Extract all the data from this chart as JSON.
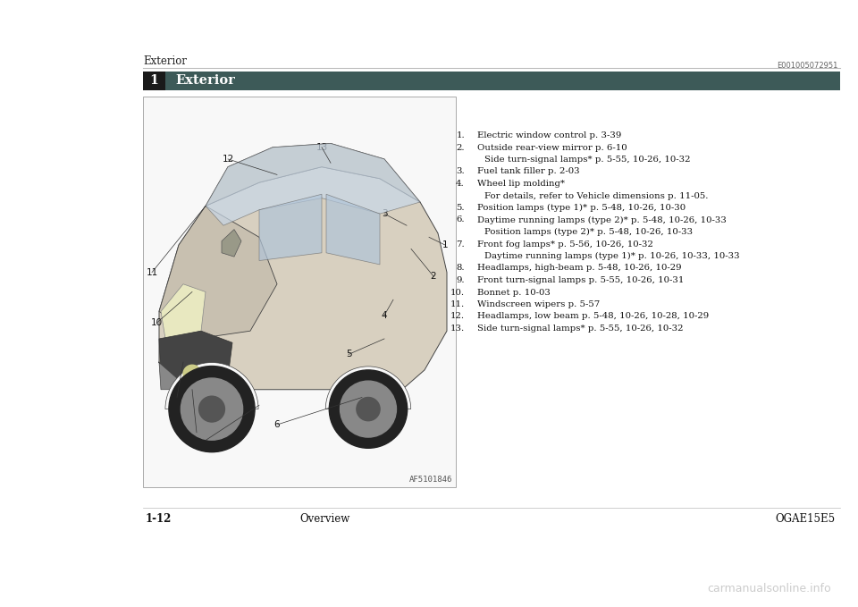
{
  "page_bg": "#ffffff",
  "header_section_label": "Exterior",
  "header_line_color": "#bbbbbb",
  "header_bar_bg": "#3d5a58",
  "header_bar_text": "Exterior",
  "header_bar_text_color": "#ffffff",
  "header_bar_number": "1",
  "header_bar_number_bg": "#1a1a1a",
  "code_top_right": "E001005072951",
  "footer_left": "1-12",
  "footer_center": "Overview",
  "footer_right": "OGAE15E5",
  "footer_watermark": "carmanualsonline.info",
  "image_code": "AF5101846",
  "items": [
    {
      "num": "1.",
      "main": "Electric window control p. 3-39",
      "sub": ""
    },
    {
      "num": "2.",
      "main": "Outside rear-view mirror p. 6-10",
      "sub": "Side turn-signal lamps* p. 5-55, 10-26, 10-32"
    },
    {
      "num": "3.",
      "main": "Fuel tank filler p. 2-03",
      "sub": ""
    },
    {
      "num": "4.",
      "main": "Wheel lip molding*",
      "sub": "For details, refer to Vehicle dimensions p. 11-05."
    },
    {
      "num": "5.",
      "main": "Position lamps (type 1)* p. 5-48, 10-26, 10-30",
      "sub": ""
    },
    {
      "num": "6.",
      "main": "Daytime running lamps (type 2)* p. 5-48, 10-26, 10-33",
      "sub": "Position lamps (type 2)* p. 5-48, 10-26, 10-33"
    },
    {
      "num": "7.",
      "main": "Front fog lamps* p. 5-56, 10-26, 10-32",
      "sub": "Daytime running lamps (type 1)* p. 10-26, 10-33, 10-33"
    },
    {
      "num": "8.",
      "main": "Headlamps, high-beam p. 5-48, 10-26, 10-29",
      "sub": ""
    },
    {
      "num": "9.",
      "main": "Front turn-signal lamps p. 5-55, 10-26, 10-31",
      "sub": ""
    },
    {
      "num": "10.",
      "main": "Bonnet p. 10-03",
      "sub": ""
    },
    {
      "num": "11.",
      "main": "Windscreen wipers p. 5-57",
      "sub": ""
    },
    {
      "num": "12.",
      "main": "Headlamps, low beam p. 5-48, 10-26, 10-28, 10-29",
      "sub": ""
    },
    {
      "num": "13.",
      "main": "Side turn-signal lamps* p. 5-55, 10-26, 10-32",
      "sub": ""
    }
  ]
}
